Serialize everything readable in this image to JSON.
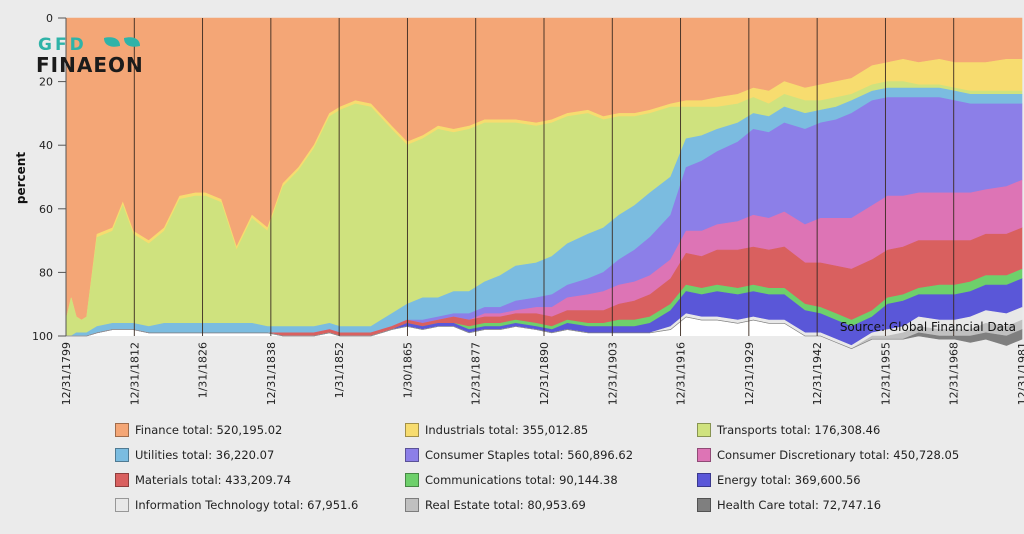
{
  "logo": {
    "line1": "GFD",
    "line2": "FINAEON",
    "icon": "leaf-logo-icon"
  },
  "source": "Source: Global Financial Data",
  "chart_data": {
    "type": "area",
    "ylabel": "percent",
    "xlabel": "",
    "ylim": [
      0,
      100
    ],
    "y_inverted": true,
    "stacked": true,
    "yticks": [
      0,
      20,
      40,
      60,
      80,
      100
    ],
    "xticks": [
      "12/31/1799",
      "12/31/1812",
      "1/31/1826",
      "12/31/1838",
      "1/31/1852",
      "1/30/1865",
      "12/31/1877",
      "12/31/1890",
      "12/31/1903",
      "12/31/1916",
      "12/31/1929",
      "12/31/1942",
      "12/31/1955",
      "12/31/1968",
      "12/31/1981"
    ],
    "x": [
      1799,
      1800,
      1801,
      1802,
      1803,
      1805,
      1808,
      1810,
      1812,
      1815,
      1818,
      1821,
      1824,
      1826,
      1829,
      1832,
      1835,
      1838,
      1841,
      1844,
      1847,
      1850,
      1852,
      1855,
      1858,
      1862,
      1865,
      1868,
      1871,
      1874,
      1877,
      1880,
      1883,
      1886,
      1890,
      1893,
      1896,
      1900,
      1903,
      1906,
      1909,
      1912,
      1916,
      1919,
      1922,
      1925,
      1929,
      1932,
      1935,
      1938,
      1942,
      1945,
      1948,
      1951,
      1955,
      1958,
      1961,
      1964,
      1968,
      1971,
      1974,
      1977,
      1981,
      1984
    ],
    "series": [
      {
        "name": "Finance total",
        "legend": "Finance total: 520,195.02",
        "color": "#f4a676",
        "values": [
          95,
          88,
          94,
          95,
          94,
          68,
          66,
          58,
          67,
          70,
          66,
          56,
          55,
          55,
          57,
          72,
          62,
          66,
          52,
          47,
          40,
          30,
          28,
          26,
          27,
          34,
          39,
          37,
          34,
          35,
          34,
          32,
          32,
          32,
          33,
          32,
          30,
          29,
          31,
          30,
          30,
          29,
          27,
          26,
          26,
          25,
          24,
          22,
          23,
          20,
          22,
          21,
          20,
          19,
          15,
          14,
          13,
          14,
          13,
          14,
          14,
          14,
          13,
          13
        ]
      },
      {
        "name": "Industrials total",
        "legend": "Industrials total: 355,012.85",
        "color": "#f7dc6f",
        "values": [
          0,
          0,
          0,
          0,
          0,
          1,
          1,
          1,
          1,
          1,
          1,
          1,
          1,
          1,
          1,
          1,
          1,
          1,
          1,
          1,
          1,
          1,
          1,
          1,
          1,
          1,
          1,
          1,
          1,
          1,
          1,
          1,
          1,
          1,
          1,
          1,
          1,
          1,
          1,
          1,
          1,
          1,
          1,
          2,
          2,
          3,
          3,
          3,
          4,
          4,
          4,
          5,
          5,
          5,
          6,
          6,
          7,
          7,
          8,
          8,
          9,
          9,
          10,
          10
        ]
      },
      {
        "name": "Transports total",
        "legend": "Transports total: 176,308.46",
        "color": "#cfe27e",
        "values": [
          5,
          12,
          5,
          4,
          5,
          28,
          29,
          37,
          28,
          26,
          29,
          39,
          40,
          40,
          38,
          23,
          33,
          30,
          44,
          49,
          56,
          65,
          68,
          70,
          69,
          58,
          50,
          50,
          53,
          50,
          51,
          50,
          48,
          45,
          43,
          42,
          40,
          38,
          34,
          31,
          28,
          25,
          22,
          10,
          9,
          7,
          6,
          5,
          4,
          4,
          4,
          3,
          3,
          2,
          2,
          2,
          2,
          1,
          1,
          1,
          1,
          1,
          1,
          1
        ]
      },
      {
        "name": "Utilities total",
        "legend": "Utilities total: 36,220.07",
        "color": "#7bbce0",
        "values": [
          0,
          0,
          1,
          1,
          1,
          2,
          2,
          2,
          2,
          2,
          3,
          3,
          3,
          3,
          3,
          3,
          3,
          2,
          2,
          2,
          2,
          2,
          2,
          2,
          2,
          4,
          5,
          7,
          6,
          7,
          7,
          8,
          10,
          11,
          11,
          12,
          13,
          14,
          14,
          14,
          14,
          14,
          12,
          9,
          8,
          7,
          6,
          5,
          5,
          5,
          5,
          4,
          4,
          4,
          3,
          3,
          3,
          3,
          3,
          3,
          3,
          3,
          3,
          3
        ]
      },
      {
        "name": "Consumer Staples total",
        "legend": "Consumer Staples total: 560,896.62",
        "color": "#8c7fe8",
        "values": [
          0,
          0,
          0,
          0,
          0,
          0,
          0,
          0,
          0,
          0,
          0,
          0,
          0,
          0,
          0,
          0,
          0,
          0,
          0,
          0,
          0,
          0,
          0,
          0,
          0,
          0,
          0,
          1,
          1,
          1,
          2,
          2,
          2,
          3,
          3,
          4,
          4,
          5,
          6,
          8,
          10,
          12,
          14,
          20,
          22,
          23,
          25,
          27,
          27,
          28,
          30,
          30,
          31,
          33,
          33,
          31,
          31,
          30,
          30,
          29,
          28,
          27,
          26,
          24
        ]
      },
      {
        "name": "Consumer Discretionary total",
        "legend": "Consumer Discretionary total: 450,728.05",
        "color": "#dd74b5",
        "values": [
          0,
          0,
          0,
          0,
          0,
          0,
          0,
          0,
          0,
          0,
          0,
          0,
          0,
          0,
          0,
          0,
          0,
          0,
          0,
          0,
          0,
          0,
          0,
          0,
          0,
          0,
          0,
          0,
          0,
          0,
          0,
          1,
          1,
          1,
          2,
          3,
          4,
          5,
          6,
          6,
          6,
          6,
          6,
          7,
          8,
          8,
          9,
          10,
          10,
          11,
          12,
          14,
          15,
          16,
          17,
          17,
          16,
          15,
          15,
          15,
          15,
          14,
          15,
          15
        ]
      },
      {
        "name": "Materials total",
        "legend": "Materials total: 433,209.74",
        "color": "#d9605f",
        "values": [
          0,
          0,
          0,
          0,
          0,
          0,
          0,
          0,
          0,
          0,
          0,
          0,
          0,
          0,
          0,
          0,
          0,
          0,
          1,
          1,
          1,
          1,
          1,
          1,
          1,
          1,
          1,
          1,
          1,
          2,
          2,
          2,
          2,
          2,
          3,
          3,
          3,
          4,
          4,
          5,
          6,
          7,
          8,
          10,
          10,
          11,
          12,
          12,
          12,
          13,
          13,
          14,
          15,
          16,
          16,
          15,
          15,
          15,
          14,
          14,
          13,
          13,
          13,
          13
        ]
      },
      {
        "name": "Communications total",
        "legend": "Communications total: 90,144.38",
        "color": "#6ed06b",
        "values": [
          0,
          0,
          0,
          0,
          0,
          0,
          0,
          0,
          0,
          0,
          0,
          0,
          0,
          0,
          0,
          0,
          0,
          0,
          0,
          0,
          0,
          0,
          0,
          0,
          0,
          0,
          0,
          0,
          0,
          0,
          1,
          1,
          1,
          1,
          1,
          1,
          1,
          1,
          1,
          2,
          2,
          2,
          2,
          2,
          2,
          2,
          2,
          2,
          2,
          2,
          2,
          2,
          2,
          2,
          2,
          2,
          2,
          2,
          3,
          3,
          3,
          3,
          3,
          3
        ]
      },
      {
        "name": "Energy total",
        "legend": "Energy total: 369,600.56",
        "color": "#5a57d8",
        "values": [
          0,
          0,
          0,
          0,
          0,
          0,
          0,
          0,
          0,
          0,
          0,
          0,
          0,
          0,
          0,
          0,
          0,
          0,
          0,
          0,
          0,
          0,
          0,
          0,
          0,
          0,
          1,
          1,
          1,
          1,
          1,
          1,
          1,
          1,
          1,
          1,
          2,
          2,
          2,
          2,
          2,
          3,
          5,
          7,
          7,
          8,
          8,
          8,
          8,
          8,
          7,
          6,
          6,
          6,
          5,
          8,
          8,
          7,
          8,
          8,
          8,
          8,
          9,
          9
        ]
      },
      {
        "name": "Information Technology total",
        "legend": "Information Technology total: 67,951.6",
        "color": "#e8e8e8",
        "values": [
          0,
          0,
          0,
          0,
          0,
          0,
          0,
          0,
          0,
          0,
          0,
          0,
          0,
          0,
          0,
          0,
          0,
          0,
          0,
          0,
          0,
          0,
          0,
          0,
          0,
          0,
          0,
          0,
          0,
          0,
          0,
          0,
          0,
          0,
          0,
          0,
          0,
          0,
          0,
          0,
          0,
          0,
          1,
          1,
          1,
          1,
          1,
          1,
          1,
          1,
          1,
          1,
          1,
          1,
          1,
          2,
          2,
          3,
          3,
          3,
          4,
          4,
          4,
          4
        ]
      },
      {
        "name": "Real Estate total",
        "legend": "Real Estate total: 80,953.69",
        "color": "#c0c0c0",
        "values": [
          0,
          0,
          0,
          0,
          0,
          0,
          0,
          0,
          0,
          0,
          0,
          0,
          0,
          0,
          0,
          0,
          0,
          0,
          0,
          0,
          0,
          0,
          0,
          0,
          0,
          0,
          0,
          0,
          0,
          0,
          0,
          0,
          0,
          0,
          0,
          0,
          0,
          0,
          0,
          0,
          0,
          0,
          0,
          0,
          0,
          0,
          0,
          0,
          0,
          0,
          0,
          0,
          0,
          0,
          1,
          1,
          2,
          2,
          2,
          2,
          2,
          3,
          3,
          3
        ]
      },
      {
        "name": "Health Care total",
        "legend": "Health Care total: 72,747.16",
        "color": "#7f7f7f",
        "values": [
          0,
          0,
          0,
          0,
          0,
          0,
          0,
          0,
          0,
          0,
          0,
          0,
          0,
          0,
          0,
          0,
          0,
          0,
          0,
          0,
          0,
          0,
          0,
          0,
          0,
          0,
          0,
          0,
          0,
          0,
          0,
          0,
          0,
          0,
          0,
          0,
          0,
          0,
          0,
          0,
          0,
          0,
          0,
          0,
          0,
          0,
          0,
          0,
          0,
          0,
          0,
          0,
          0,
          0,
          0,
          0,
          0,
          1,
          1,
          1,
          2,
          2,
          3,
          3
        ]
      }
    ]
  }
}
